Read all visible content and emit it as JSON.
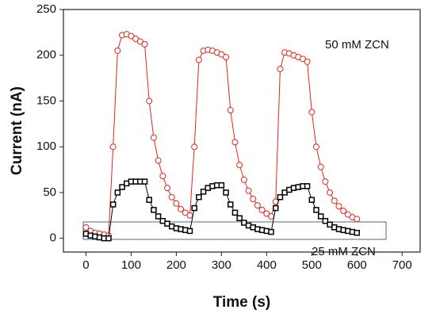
{
  "chart_data": {
    "type": "scatter",
    "xlabel": "Time (s)",
    "ylabel": "Current (nA)",
    "annotations": [
      "50 mM ZCN",
      "25 mM ZCN"
    ],
    "xlim": [
      -50,
      740
    ],
    "ylim": [
      -15,
      250
    ],
    "xticks": [
      0,
      100,
      200,
      300,
      400,
      500,
      600,
      700
    ],
    "yticks": [
      0,
      50,
      100,
      150,
      200,
      250
    ],
    "x": [
      0,
      10,
      20,
      30,
      40,
      50,
      60,
      70,
      80,
      90,
      100,
      110,
      120,
      130,
      140,
      150,
      160,
      170,
      180,
      190,
      200,
      210,
      220,
      230,
      240,
      250,
      260,
      270,
      280,
      290,
      300,
      310,
      320,
      330,
      340,
      350,
      360,
      370,
      380,
      390,
      400,
      410,
      420,
      430,
      440,
      450,
      460,
      470,
      480,
      490,
      500,
      510,
      520,
      530,
      540,
      550,
      560,
      570,
      580,
      590,
      600
    ],
    "series": [
      {
        "name": "50 mM ZCN",
        "color": "#e0261c",
        "marker": "circle",
        "values": [
          12,
          8,
          6,
          5,
          4,
          3,
          100,
          205,
          222,
          223,
          221,
          218,
          215,
          212,
          150,
          110,
          85,
          68,
          55,
          45,
          38,
          32,
          28,
          25,
          100,
          195,
          205,
          206,
          205,
          203,
          201,
          198,
          140,
          105,
          80,
          64,
          52,
          43,
          36,
          31,
          27,
          24,
          40,
          185,
          203,
          202,
          200,
          198,
          196,
          193,
          138,
          100,
          78,
          62,
          50,
          41,
          35,
          30,
          26,
          23,
          21
        ]
      },
      {
        "name": "25 mM ZCN",
        "color": "#000000",
        "marker": "square",
        "values": [
          5,
          3,
          2,
          1,
          0,
          0,
          37,
          50,
          56,
          60,
          62,
          62,
          62,
          62,
          42,
          31,
          24,
          19,
          16,
          13,
          11,
          10,
          9,
          8,
          33,
          45,
          51,
          55,
          57,
          58,
          58,
          50,
          37,
          28,
          22,
          17,
          14,
          12,
          10,
          9,
          8,
          7,
          33,
          45,
          50,
          53,
          55,
          56,
          57,
          57,
          42,
          31,
          24,
          19,
          15,
          12,
          10,
          9,
          8,
          7,
          6
        ]
      }
    ]
  }
}
